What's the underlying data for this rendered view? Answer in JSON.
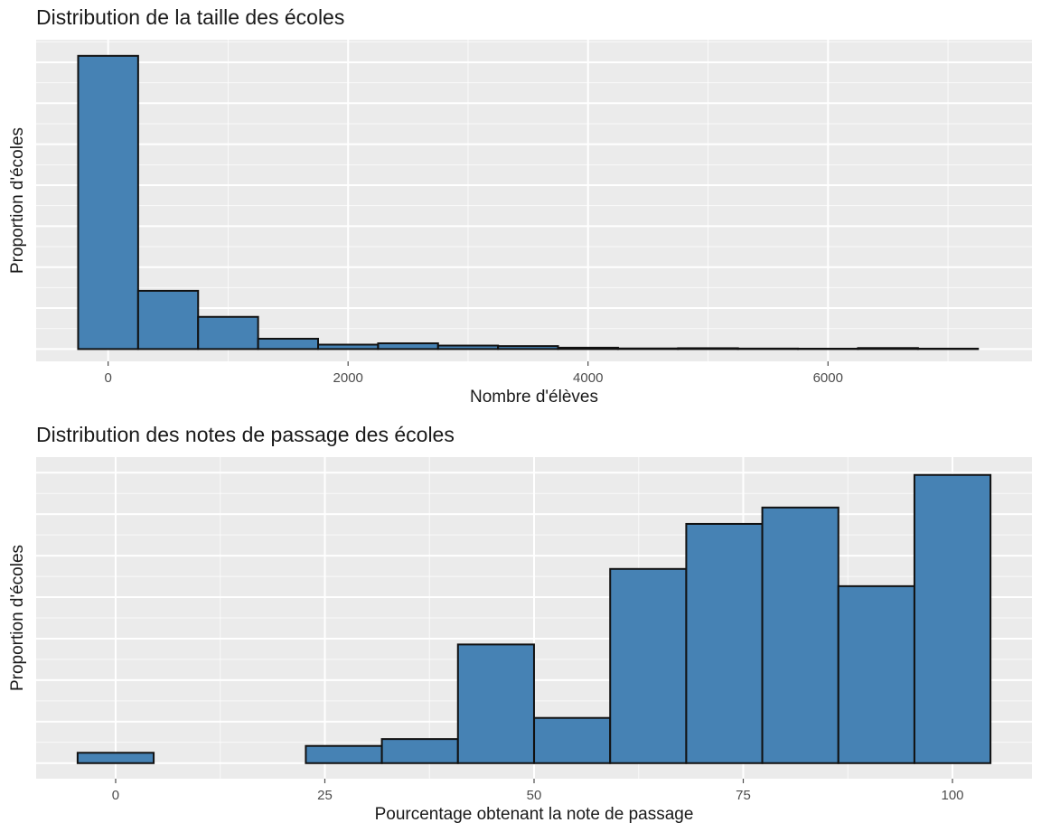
{
  "chart_data": [
    {
      "type": "bar",
      "title": "Distribution de la taille des écoles",
      "xlabel": "Nombre d'élèves",
      "ylabel": "Proportion d'écoles",
      "bar_color": "#4682B4",
      "bar_outline": "#111111",
      "bin_width": 500,
      "bin_centers": [
        0,
        500,
        1000,
        1500,
        2000,
        2500,
        3000,
        3500,
        4000,
        4500,
        5000,
        5500,
        6000,
        6500,
        7000
      ],
      "values": [
        0.7157,
        0.1422,
        0.0786,
        0.0252,
        0.0108,
        0.014,
        0.0085,
        0.0072,
        0.0033,
        0.0015,
        0.0021,
        0.0012,
        0.0009,
        0.0025,
        0.001
      ],
      "xlim": [
        -600,
        7700
      ],
      "ylim": [
        -0.03,
        0.755
      ],
      "x_ticks": [
        0,
        2000,
        4000,
        6000
      ],
      "x_tick_labels": [
        "0",
        "2000",
        "4000",
        "6000"
      ],
      "y_gridlines": [
        0,
        0.1,
        0.2,
        0.3,
        0.4,
        0.5,
        0.6,
        0.7
      ],
      "y_tick_labels_visible": false,
      "grid": true
    },
    {
      "type": "bar",
      "title": "Distribution des notes de passage des écoles",
      "xlabel": "Pourcentage obtenant la note de passage",
      "ylabel": "Proportion d'écoles",
      "bar_color": "#4682B4",
      "bar_outline": "#111111",
      "bin_width": 9.09,
      "bin_centers": [
        0,
        9.09,
        18.18,
        27.27,
        36.36,
        45.45,
        54.55,
        63.64,
        72.73,
        81.82,
        90.91,
        100
      ],
      "values": [
        0.005,
        0.0,
        0.0,
        0.0083,
        0.0116,
        0.0572,
        0.0218,
        0.0936,
        0.1153,
        0.1232,
        0.0853,
        0.1389
      ],
      "xlim": [
        -9.5,
        109.5
      ],
      "ylim": [
        -0.0075,
        0.1475
      ],
      "x_ticks": [
        0,
        25,
        50,
        75,
        100
      ],
      "x_tick_labels": [
        "0",
        "25",
        "50",
        "75",
        "100"
      ],
      "y_gridlines": [
        0,
        0.02,
        0.04,
        0.06,
        0.08,
        0.1,
        0.12,
        0.14
      ],
      "y_tick_labels_visible": false,
      "grid": true
    }
  ]
}
